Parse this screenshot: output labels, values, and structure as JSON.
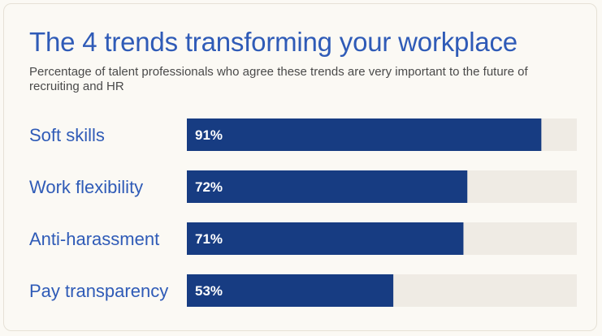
{
  "header": {
    "title": "The 4 trends transforming your workplace",
    "subtitle": "Percentage of talent professionals who agree these trends are very important to the future of recruiting and HR"
  },
  "colors": {
    "bar": "#173c82",
    "track": "#efebe4",
    "accent": "#2f5bb7"
  },
  "chart_data": {
    "type": "bar",
    "orientation": "horizontal",
    "title": "The 4 trends transforming your workplace",
    "subtitle": "Percentage of talent professionals who agree these trends are very important to the future of recruiting and HR",
    "categories": [
      "Soft skills",
      "Work flexibility",
      "Anti-harassment",
      "Pay transparency"
    ],
    "values": [
      91,
      72,
      71,
      53
    ],
    "value_labels": [
      "91%",
      "72%",
      "71%",
      "53%"
    ],
    "xlim": [
      0,
      100
    ],
    "grid": false
  }
}
